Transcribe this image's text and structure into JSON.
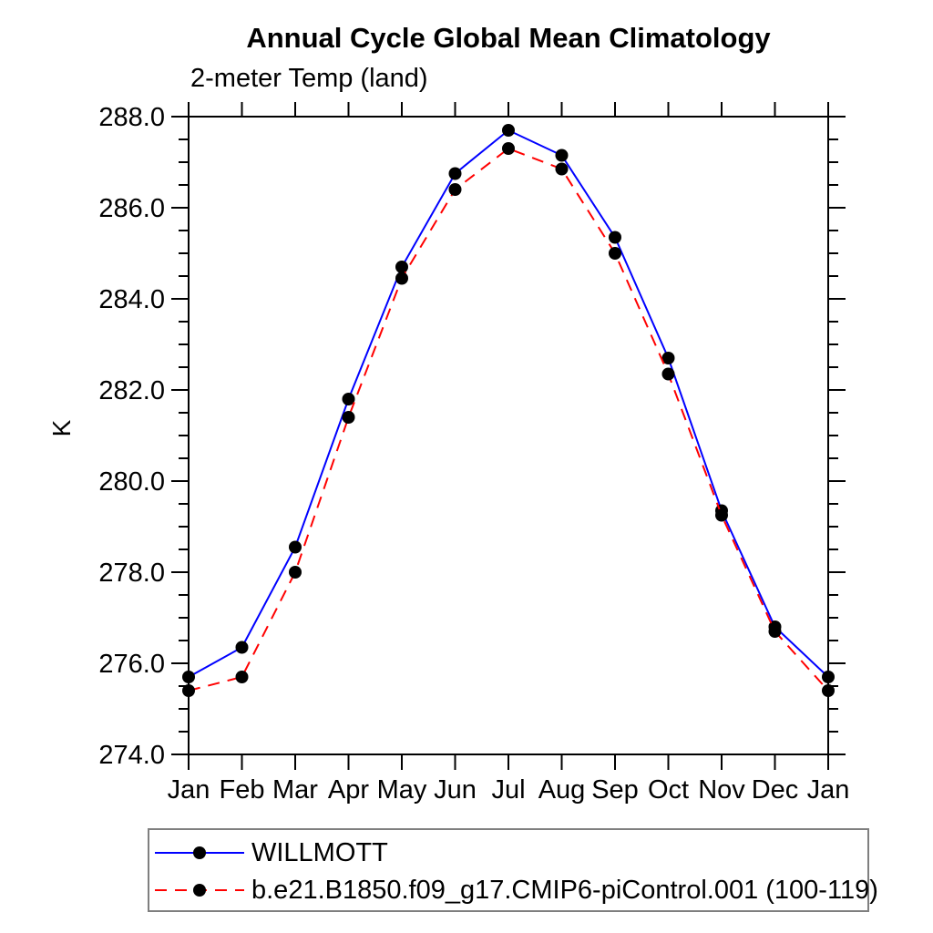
{
  "page": {
    "background": "#ffffff",
    "frame_color": "#000000"
  },
  "chart_data": {
    "type": "line",
    "title": "Annual Cycle Global Mean Climatology",
    "subtitle": "2-meter Temp (land)",
    "xlabel": "",
    "ylabel": "K",
    "categories": [
      "Jan",
      "Feb",
      "Mar",
      "Apr",
      "May",
      "Jun",
      "Jul",
      "Aug",
      "Sep",
      "Oct",
      "Nov",
      "Dec",
      "Jan"
    ],
    "ylim": [
      274.0,
      288.0
    ],
    "y_major_step": 2.0,
    "y_minor_step": 0.5,
    "y_tick_labels": [
      "274.0",
      "276.0",
      "278.0",
      "280.0",
      "282.0",
      "284.0",
      "286.0",
      "288.0"
    ],
    "grid": false,
    "ticks": "outward-all-sides",
    "legend_position": "boxed-below-plot",
    "series": [
      {
        "name": "WILLMOTT",
        "color": "#0000ff",
        "line_style": "solid",
        "marker": "circle",
        "marker_color": "#000000",
        "values": [
          275.7,
          276.35,
          278.55,
          281.8,
          284.7,
          286.75,
          287.7,
          287.15,
          285.35,
          282.7,
          279.35,
          276.8,
          275.7
        ]
      },
      {
        "name": "b.e21.B1850.f09_g17.CMIP6-piControl.001 (100-119)",
        "color": "#ff0000",
        "line_style": "dashed",
        "marker": "circle",
        "marker_color": "#000000",
        "values": [
          275.4,
          275.7,
          278.0,
          281.4,
          284.45,
          286.4,
          287.3,
          286.85,
          285.0,
          282.35,
          279.25,
          276.7,
          275.4
        ]
      }
    ]
  }
}
